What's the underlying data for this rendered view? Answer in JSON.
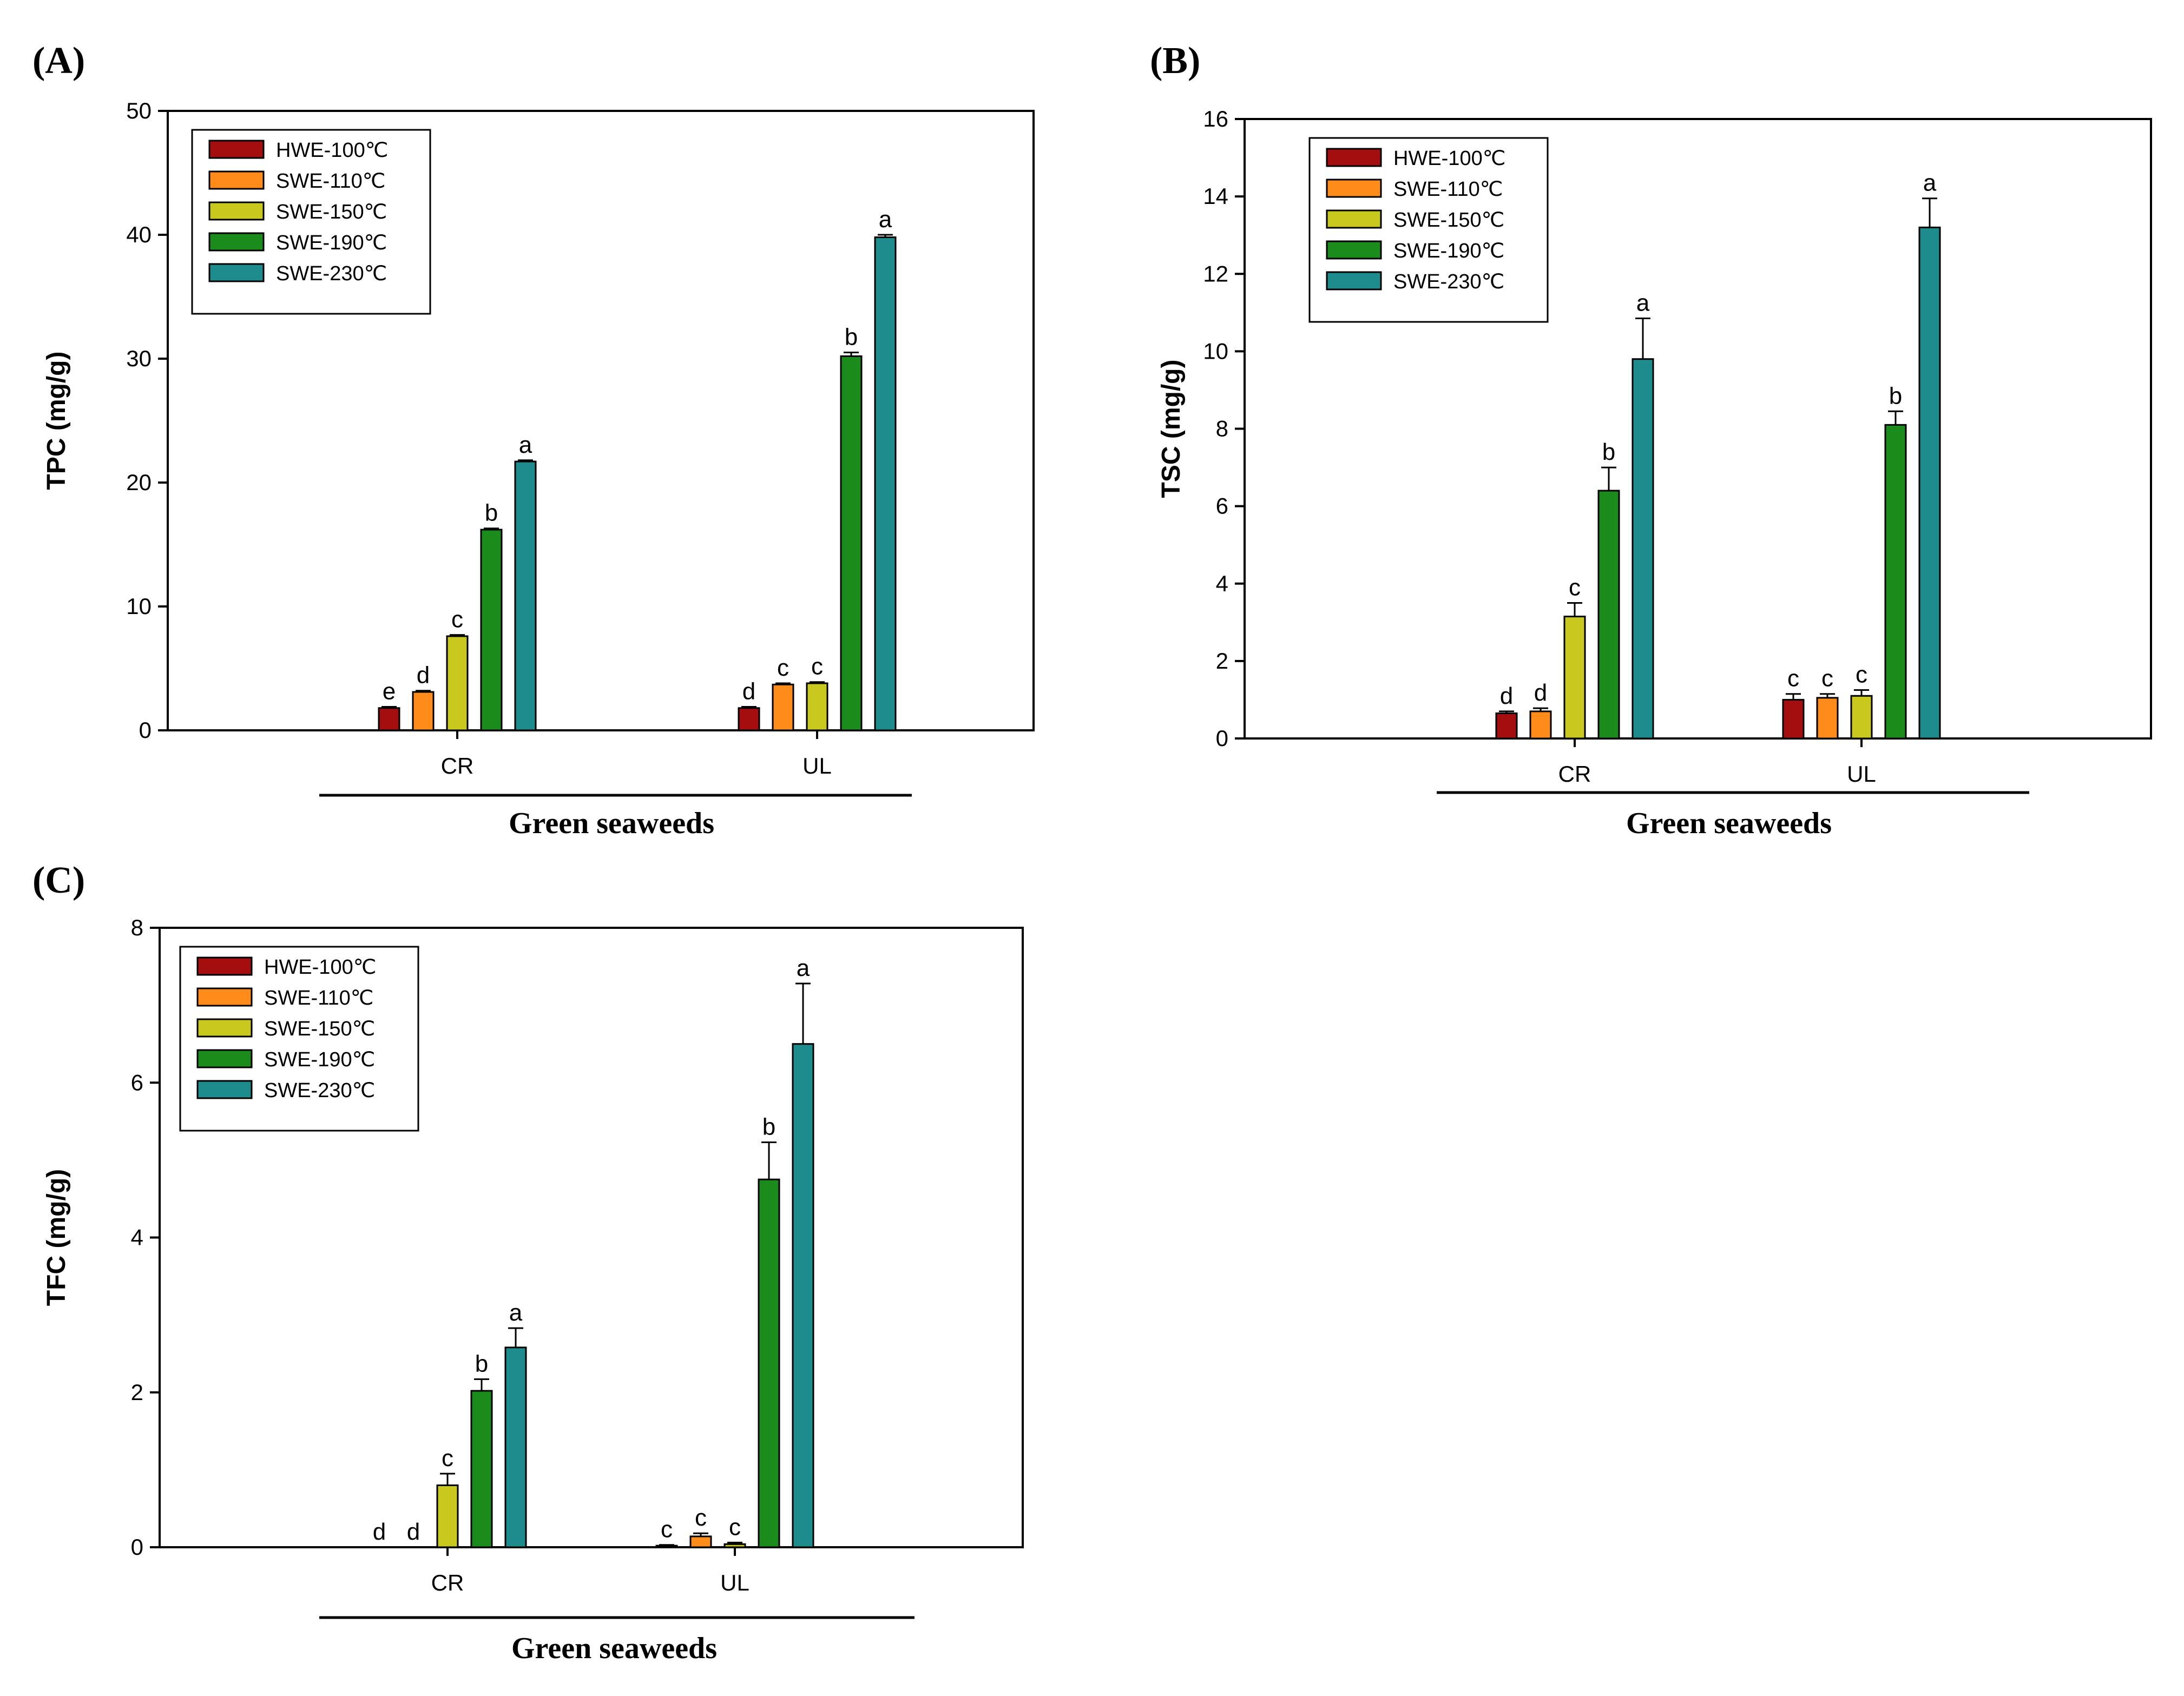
{
  "chart_data": [
    {
      "type": "bar",
      "panel": "(A)",
      "title": "",
      "xlabel": "Green seaweeds",
      "ylabel": "TPC (mg/g)",
      "ylim": [
        0,
        50
      ],
      "yticks": [
        0,
        10,
        20,
        30,
        40,
        50
      ],
      "categories": [
        "CR",
        "UL"
      ],
      "legend_position": "top-left",
      "series": [
        {
          "name": "HWE-100℃",
          "color": "#a50e0e",
          "values": [
            1.8,
            1.8
          ],
          "errors": [
            0.1,
            0.1
          ],
          "letters": [
            "e",
            "d"
          ]
        },
        {
          "name": "SWE-110℃",
          "color": "#ff8c1a",
          "values": [
            3.1,
            3.7
          ],
          "errors": [
            0.1,
            0.1
          ],
          "letters": [
            "d",
            "c"
          ]
        },
        {
          "name": "SWE-150℃",
          "color": "#c8c81e",
          "values": [
            7.6,
            3.8
          ],
          "errors": [
            0.1,
            0.1
          ],
          "letters": [
            "c",
            "c"
          ]
        },
        {
          "name": "SWE-190℃",
          "color": "#1b8c1b",
          "values": [
            16.2,
            30.2
          ],
          "errors": [
            0.1,
            0.3
          ],
          "letters": [
            "b",
            "b"
          ]
        },
        {
          "name": "SWE-230℃",
          "color": "#1e8c8c",
          "values": [
            21.7,
            39.8
          ],
          "errors": [
            0.1,
            0.2
          ],
          "letters": [
            "a",
            "a"
          ]
        }
      ]
    },
    {
      "type": "bar",
      "panel": "(B)",
      "title": "",
      "xlabel": "Green seaweeds",
      "ylabel": "TSC (mg/g)",
      "ylim": [
        0,
        16
      ],
      "yticks": [
        0,
        2,
        4,
        6,
        8,
        10,
        12,
        14,
        16
      ],
      "categories": [
        "CR",
        "UL"
      ],
      "legend_position": "top-left",
      "series": [
        {
          "name": "HWE-100℃",
          "color": "#a50e0e",
          "values": [
            0.65,
            1.0
          ],
          "errors": [
            0.05,
            0.15
          ],
          "letters": [
            "d",
            "c"
          ]
        },
        {
          "name": "SWE-110℃",
          "color": "#ff8c1a",
          "values": [
            0.7,
            1.05
          ],
          "errors": [
            0.08,
            0.1
          ],
          "letters": [
            "d",
            "c"
          ]
        },
        {
          "name": "SWE-150℃",
          "color": "#c8c81e",
          "values": [
            3.15,
            1.1
          ],
          "errors": [
            0.35,
            0.15
          ],
          "letters": [
            "c",
            "c"
          ]
        },
        {
          "name": "SWE-190℃",
          "color": "#1b8c1b",
          "values": [
            6.4,
            8.1
          ],
          "errors": [
            0.6,
            0.35
          ],
          "letters": [
            "b",
            "b"
          ]
        },
        {
          "name": "SWE-230℃",
          "color": "#1e8c8c",
          "values": [
            9.8,
            13.2
          ],
          "errors": [
            1.05,
            0.75
          ],
          "letters": [
            "a",
            "a"
          ]
        }
      ]
    },
    {
      "type": "bar",
      "panel": "(C)",
      "title": "",
      "xlabel": "Green seaweeds",
      "ylabel": "TFC (mg/g)",
      "ylim": [
        0,
        8
      ],
      "yticks": [
        0,
        2,
        4,
        6,
        8
      ],
      "categories": [
        "CR",
        "UL"
      ],
      "legend_position": "top-left",
      "series": [
        {
          "name": "HWE-100℃",
          "color": "#a50e0e",
          "values": [
            0,
            0.02
          ],
          "errors": [
            0,
            0.01
          ],
          "letters": [
            "d",
            "c"
          ]
        },
        {
          "name": "SWE-110℃",
          "color": "#ff8c1a",
          "values": [
            0,
            0.14
          ],
          "errors": [
            0,
            0.04
          ],
          "letters": [
            "d",
            "c"
          ]
        },
        {
          "name": "SWE-150℃",
          "color": "#c8c81e",
          "values": [
            0.8,
            0.04
          ],
          "errors": [
            0.15,
            0.02
          ],
          "letters": [
            "c",
            "c"
          ]
        },
        {
          "name": "SWE-190℃",
          "color": "#1b8c1b",
          "values": [
            2.02,
            4.75
          ],
          "errors": [
            0.15,
            0.48
          ],
          "letters": [
            "b",
            "b"
          ]
        },
        {
          "name": "SWE-230℃",
          "color": "#1e8c8c",
          "values": [
            2.58,
            6.5
          ],
          "errors": [
            0.25,
            0.78
          ],
          "letters": [
            "a",
            "a"
          ]
        }
      ]
    }
  ]
}
